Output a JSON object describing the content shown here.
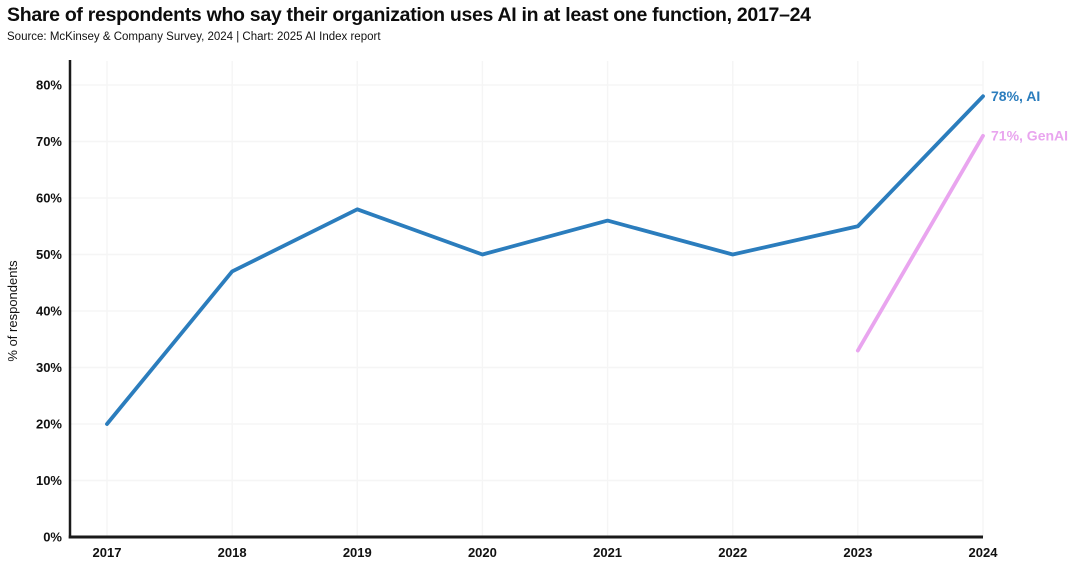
{
  "header": {
    "title": "Share of respondents who say their organization uses AI in at least one function, 2017–24",
    "source": "Source: McKinsey & Company Survey, 2024 | Chart: 2025 AI Index report"
  },
  "chart_data": {
    "type": "line",
    "title": "Share of respondents who say their organization uses AI in at least one function, 2017–24",
    "source": "Source: McKinsey & Company Survey, 2024 | Chart: 2025 AI Index report",
    "xlabel": "",
    "ylabel": "% of respondents",
    "categories": [
      "2017",
      "2018",
      "2019",
      "2020",
      "2021",
      "2022",
      "2023",
      "2024"
    ],
    "ylim": [
      0,
      80
    ],
    "ytick_step": 10,
    "ytick_suffix": "%",
    "grid": true,
    "legend_position": "end-of-line",
    "series": [
      {
        "name": "AI",
        "color": "#2b7dbd",
        "x": [
          2017,
          2018,
          2019,
          2020,
          2021,
          2022,
          2023,
          2024
        ],
        "values": [
          20,
          47,
          58,
          50,
          56,
          50,
          55,
          78
        ],
        "end_label": "78%, AI"
      },
      {
        "name": "GenAI",
        "color": "#e9a5ef",
        "x": [
          2023,
          2024
        ],
        "values": [
          33,
          71
        ],
        "end_label": "71%, GenAI"
      }
    ],
    "colors": {
      "axis": "#1a1a1a",
      "grid": "#f5f5f5",
      "text": "#111111",
      "background": "#ffffff"
    }
  }
}
